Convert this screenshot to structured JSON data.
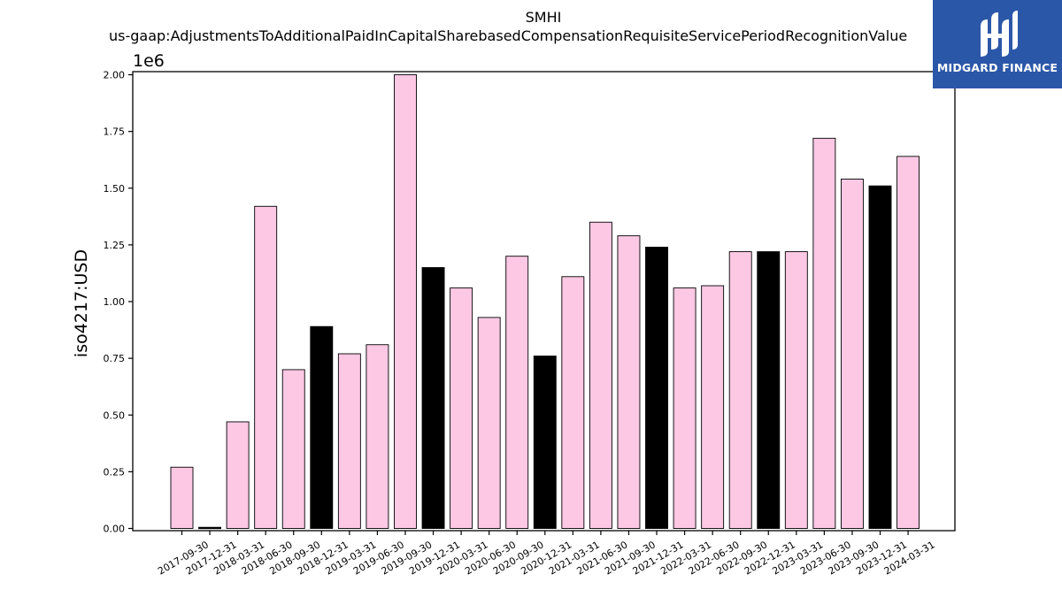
{
  "logo": {
    "text": "MIDGARD FINANCE",
    "bg_color": "#2b57a8"
  },
  "chart_data": {
    "type": "bar",
    "title": "SMHI",
    "subtitle": "us-gaap:AdjustmentsToAdditionalPaidInCapitalSharebasedCompensationRequisiteServicePeriodRecognitionValue",
    "ylabel": "iso4217:USD",
    "xlabel": "",
    "y_scale_label": "1e6",
    "y_multiplier": 1000000,
    "ylim": [
      0,
      2.02
    ],
    "yticks": [
      "0.00",
      "0.25",
      "0.50",
      "0.75",
      "1.00",
      "1.25",
      "1.50",
      "1.75",
      "2.00"
    ],
    "grid": false,
    "colors": {
      "q4": "#000000",
      "other": "#fcc8e4",
      "edge": "#000000"
    },
    "categories": [
      "2017-09-30",
      "2017-12-31",
      "2018-03-31",
      "2018-06-30",
      "2018-09-30",
      "2018-12-31",
      "2019-03-31",
      "2019-06-30",
      "2019-09-30",
      "2019-12-31",
      "2020-03-31",
      "2020-06-30",
      "2020-09-30",
      "2020-12-31",
      "2021-03-31",
      "2021-06-30",
      "2021-09-30",
      "2021-12-31",
      "2022-03-31",
      "2022-06-30",
      "2022-09-30",
      "2022-12-31",
      "2023-03-31",
      "2023-06-30",
      "2023-09-30",
      "2023-12-31",
      "2024-03-31"
    ],
    "values": [
      0.27,
      0.005,
      0.47,
      1.42,
      0.7,
      0.89,
      0.77,
      0.81,
      2.02,
      1.15,
      1.06,
      0.93,
      1.2,
      0.76,
      1.11,
      1.35,
      1.29,
      1.24,
      1.06,
      1.07,
      1.22,
      1.22,
      1.22,
      1.72,
      1.54,
      1.51,
      1.64
    ]
  }
}
